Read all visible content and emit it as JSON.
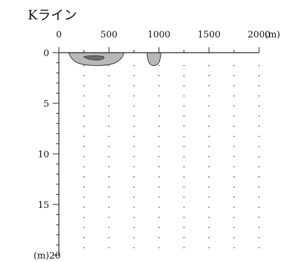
{
  "chart_data": {
    "type": "contour",
    "title": "Kライン",
    "x_axis": {
      "range": [
        0,
        2000
      ],
      "ticks": [
        0,
        500,
        1000,
        1500,
        2000
      ],
      "unit": "(m)",
      "position": "top"
    },
    "y_axis": {
      "range": [
        0,
        20
      ],
      "ticks": [
        0,
        5,
        10,
        15,
        20
      ],
      "unit": "(m)",
      "inverted": true
    },
    "station_columns_x": [
      250,
      500,
      750,
      1000,
      1250,
      1500,
      1750,
      2000
    ],
    "station_depth_step": 1,
    "grid": false,
    "regions": [
      {
        "id": "anomaly-1",
        "x_range": [
          100,
          650
        ],
        "depth_max": 1.0,
        "outer_fill": "#b8b8b8",
        "inner_fill": "#6e6e6e",
        "inner_x_range": [
          250,
          450
        ],
        "inner_depth_range": [
          0.2,
          0.6
        ]
      },
      {
        "id": "anomaly-2",
        "x_range": [
          880,
          1020
        ],
        "depth_max": 1.0,
        "outer_fill": "#b8b8b8"
      }
    ],
    "colors": {
      "axis": "#222222",
      "outer_region": "#b8b8b8",
      "inner_region": "#6e6e6e",
      "region_outline": "#333333",
      "stations": "#555555"
    }
  }
}
